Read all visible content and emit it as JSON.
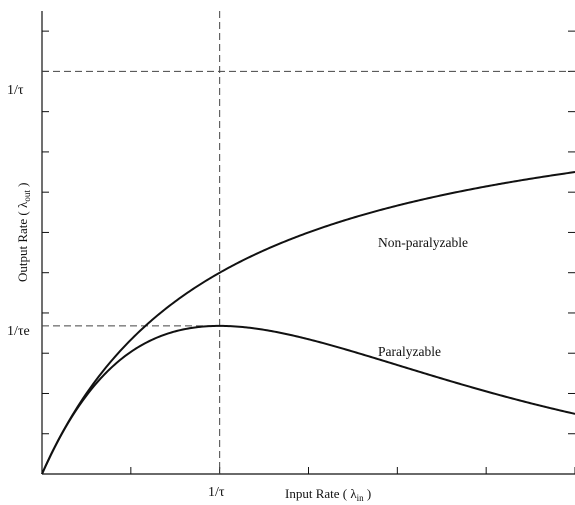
{
  "chart_data": {
    "type": "line",
    "xlabel": "Input Rate ( λin )",
    "ylabel": "Output Rate ( λout )",
    "xlabel_main": "Input Rate ( λ",
    "xlabel_sub": "in",
    "xlabel_close": " )",
    "ylabel_main": "Output Rate ( λ",
    "ylabel_sub": "out",
    "ylabel_close": " )",
    "xlim": [
      0,
      3
    ],
    "ylim": [
      0,
      1.15
    ],
    "x_ticks": [
      0.5,
      1,
      1.5,
      2,
      2.5,
      3
    ],
    "y_ticks": [
      0.1,
      0.2,
      0.3,
      0.4,
      0.5,
      0.6,
      0.7,
      0.8,
      0.9,
      1.0,
      1.1
    ],
    "tick_labels": {
      "x_inv_tau": "1/τ",
      "y_inv_tau": "1/τ",
      "y_inv_tau_e": "1/τe"
    },
    "reference_lines": [
      {
        "orientation": "vertical",
        "x": 1
      },
      {
        "orientation": "horizontal",
        "y": 1.0
      },
      {
        "orientation": "horizontal",
        "y": 0.3679,
        "x_end": 1
      }
    ],
    "series": [
      {
        "name": "Non-paralyzable",
        "formula": "x / (1 + x)"
      },
      {
        "name": "Paralyzable",
        "formula": "x * exp(-x)"
      }
    ],
    "legend": "inline"
  }
}
